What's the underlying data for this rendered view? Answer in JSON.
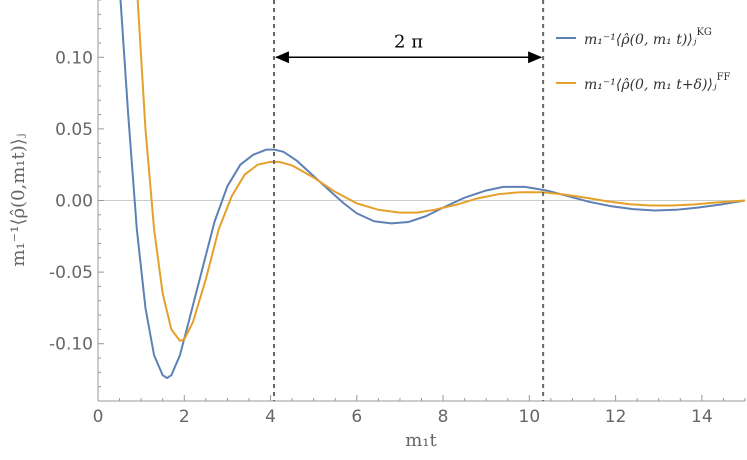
{
  "chart_data": {
    "type": "line",
    "xlabel": "m₁t",
    "ylabel": "m₁⁻¹⟨ρ̂(0,m₁t)⟩ⱼ",
    "xlim": [
      0,
      15
    ],
    "ylim": [
      -0.14,
      0.14
    ],
    "xticks": [
      0,
      2,
      4,
      6,
      8,
      10,
      12,
      14
    ],
    "xtick_labels": [
      "0",
      "2",
      "4",
      "6",
      "8",
      "10",
      "12",
      "14"
    ],
    "yticks": [
      -0.1,
      -0.05,
      0.0,
      0.05,
      0.1
    ],
    "ytick_labels": [
      "-0.10",
      "-0.05",
      "0.00",
      "0.05",
      "0.10"
    ],
    "grid": false,
    "zero_line": true,
    "legend_position": "top-right",
    "vlines": [
      4.08,
      10.32
    ],
    "annotation": {
      "text": "2 π",
      "from": 4.08,
      "to": 10.32,
      "y": 0.1
    },
    "series": [
      {
        "name": "m₁⁻¹⟨ρ̂(0, m₁ t)⟩ⱼ^KG",
        "legend_text": "m₁⁻¹⟨ρ̂(0, m₁ t)⟩ⱼ",
        "legend_sup": "KG",
        "color": "#5E81B5",
        "x": [
          0.5,
          0.7,
          0.9,
          1.1,
          1.3,
          1.5,
          1.6,
          1.7,
          1.9,
          2.1,
          2.4,
          2.7,
          3.0,
          3.3,
          3.6,
          3.9,
          4.1,
          4.3,
          4.6,
          5.0,
          5.4,
          5.7,
          6.0,
          6.4,
          6.8,
          7.2,
          7.6,
          8.0,
          8.5,
          9.0,
          9.4,
          9.9,
          10.4,
          10.9,
          11.4,
          11.9,
          12.4,
          12.9,
          13.4,
          13.9,
          14.4,
          15.0
        ],
        "y": [
          0.15,
          0.06,
          -0.02,
          -0.075,
          -0.108,
          -0.122,
          -0.124,
          -0.122,
          -0.108,
          -0.085,
          -0.05,
          -0.015,
          0.01,
          0.025,
          0.032,
          0.0355,
          0.0355,
          0.034,
          0.028,
          0.017,
          0.006,
          -0.002,
          -0.009,
          -0.0145,
          -0.016,
          -0.015,
          -0.011,
          -0.005,
          0.002,
          0.007,
          0.0095,
          0.0095,
          0.007,
          0.003,
          -0.001,
          -0.004,
          -0.006,
          -0.007,
          -0.0065,
          -0.005,
          -0.003,
          0.0
        ]
      },
      {
        "name": "m₁⁻¹⟨ρ̂(0, m₁ t+δ)⟩ⱼ^FF",
        "legend_text": "m₁⁻¹⟨ρ̂(0, m₁ t+δ)⟩ⱼ",
        "legend_sup": "FF",
        "color": "#E5A02A",
        "x": [
          0.9,
          1.1,
          1.3,
          1.5,
          1.7,
          1.9,
          2.0,
          2.2,
          2.5,
          2.8,
          3.1,
          3.4,
          3.7,
          4.0,
          4.2,
          4.5,
          5.0,
          5.5,
          6.0,
          6.5,
          7.0,
          7.4,
          7.8,
          8.3,
          8.8,
          9.3,
          9.8,
          10.3,
          10.8,
          11.3,
          11.8,
          12.3,
          12.8,
          13.3,
          13.8,
          14.3,
          15.0
        ],
        "y": [
          0.15,
          0.05,
          -0.02,
          -0.065,
          -0.09,
          -0.098,
          -0.097,
          -0.085,
          -0.055,
          -0.02,
          0.003,
          0.018,
          0.025,
          0.027,
          0.027,
          0.0245,
          0.016,
          0.006,
          -0.002,
          -0.0065,
          -0.0085,
          -0.0085,
          -0.0065,
          -0.003,
          0.0015,
          0.0045,
          0.0058,
          0.0058,
          0.0042,
          0.002,
          -0.0005,
          -0.0025,
          -0.0035,
          -0.0035,
          -0.0028,
          -0.0015,
          0.0
        ]
      }
    ]
  }
}
